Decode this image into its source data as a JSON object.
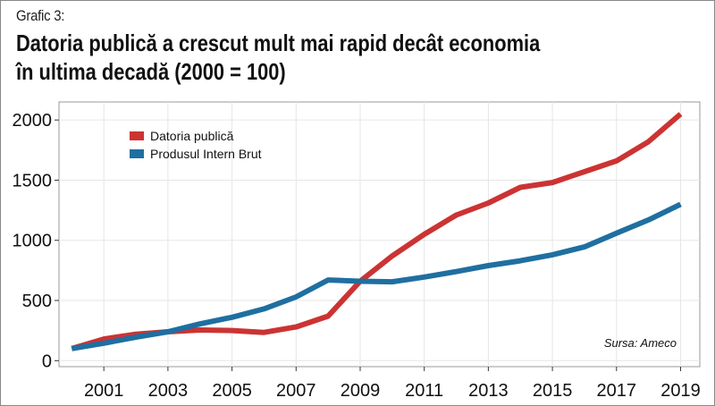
{
  "label": "Grafic 3:",
  "title_line1": "Datoria publică a crescut mult mai rapid decât economia",
  "title_line2": "în ultima decadă (2000 = 100)",
  "source": "Sursa: Ameco",
  "colors": {
    "debt": "#cc3333",
    "gdp": "#1f6fa0",
    "grid": "#e6e6e6",
    "panel_border": "#9a9a9a"
  },
  "chart_data": {
    "type": "line",
    "title": "Datoria publică a crescut mult mai rapid decât economia în ultima decadă (2000 = 100)",
    "xlabel": "",
    "ylabel": "",
    "x": [
      2000,
      2001,
      2002,
      2003,
      2004,
      2005,
      2006,
      2007,
      2008,
      2009,
      2010,
      2011,
      2012,
      2013,
      2014,
      2015,
      2016,
      2017,
      2018,
      2019
    ],
    "xticks": [
      "2001",
      "2003",
      "2005",
      "2007",
      "2009",
      "2011",
      "2013",
      "2015",
      "2017",
      "2019"
    ],
    "yticks": [
      "0",
      "500",
      "1000",
      "1500",
      "2000"
    ],
    "xlim": [
      1999.6,
      2019.6
    ],
    "ylim": [
      -50,
      2150
    ],
    "grid": true,
    "legend_position": "top-left",
    "series": [
      {
        "name": "Datoria publică",
        "color": "#cc3333",
        "values": [
          100,
          180,
          220,
          240,
          255,
          250,
          235,
          280,
          370,
          660,
          870,
          1050,
          1210,
          1310,
          1440,
          1480,
          1570,
          1660,
          1820,
          2050
        ]
      },
      {
        "name": "Produsul Intern Brut",
        "color": "#1f6fa0",
        "values": [
          100,
          145,
          195,
          240,
          305,
          360,
          430,
          530,
          670,
          660,
          655,
          695,
          740,
          790,
          830,
          880,
          945,
          1060,
          1170,
          1300
        ]
      }
    ]
  }
}
